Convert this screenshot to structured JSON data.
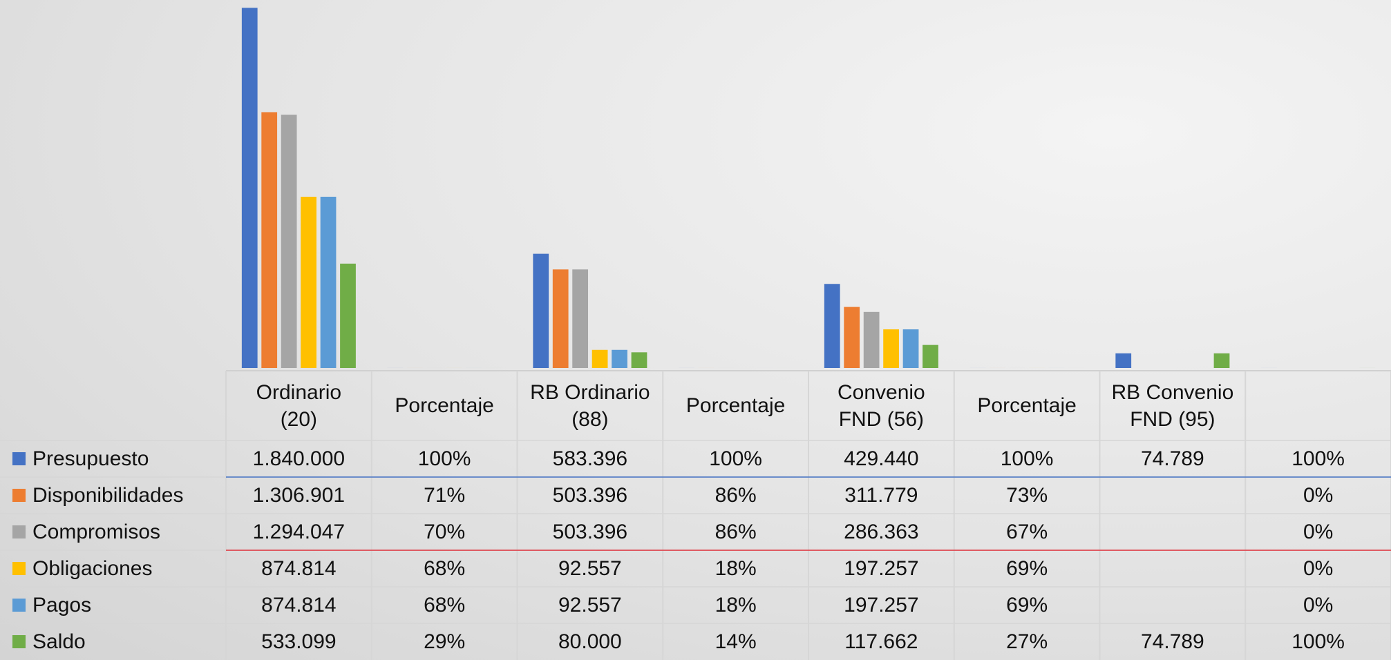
{
  "chart_data": {
    "type": "bar",
    "categories": [
      "Ordinario (20)",
      "Porcentaje",
      "RB Ordinario (88)",
      "Porcentaje",
      "Convenio FND (56)",
      "Porcentaje",
      "RB Convenio FND (95)",
      null
    ],
    "ylim": [
      0,
      1880000
    ],
    "series": [
      {
        "name": "Presupuesto",
        "color": "#4472c4",
        "values": [
          1840000,
          100,
          583396,
          100,
          429440,
          100,
          74789,
          100
        ],
        "value_labels": [
          "1.840.000",
          "100%",
          "583.396",
          "100%",
          "429.440",
          "100%",
          "74.789",
          "100%"
        ]
      },
      {
        "name": "Disponibilidades",
        "color": "#ed7d31",
        "values": [
          1306901,
          71,
          503396,
          86,
          311779,
          73,
          null,
          0
        ],
        "value_labels": [
          "1.306.901",
          "71%",
          "503.396",
          "86%",
          "311.779",
          "73%",
          null,
          "0%"
        ]
      },
      {
        "name": "Compromisos",
        "color": "#a5a5a5",
        "values": [
          1294047,
          70,
          503396,
          86,
          286363,
          67,
          null,
          0
        ],
        "value_labels": [
          "1.294.047",
          "70%",
          "503.396",
          "86%",
          "286.363",
          "67%",
          null,
          "0%"
        ]
      },
      {
        "name": "Obligaciones",
        "color": "#ffc000",
        "values": [
          874814,
          68,
          92557,
          18,
          197257,
          69,
          null,
          0
        ],
        "value_labels": [
          "874.814",
          "68%",
          "92.557",
          "18%",
          "197.257",
          "69%",
          null,
          "0%"
        ]
      },
      {
        "name": "Pagos",
        "color": "#5b9bd5",
        "values": [
          874814,
          68,
          92557,
          18,
          197257,
          69,
          null,
          0
        ],
        "value_labels": [
          "874.814",
          "68%",
          "92.557",
          "18%",
          "197.257",
          "69%",
          null,
          "0%"
        ]
      },
      {
        "name": "Saldo",
        "color": "#70ad47",
        "values": [
          533099,
          29,
          80000,
          14,
          117662,
          27,
          74789,
          100
        ],
        "value_labels": [
          "533.099",
          "29%",
          "80.000",
          "14%",
          "117.662",
          "27%",
          "74.789",
          "100%"
        ]
      }
    ]
  }
}
